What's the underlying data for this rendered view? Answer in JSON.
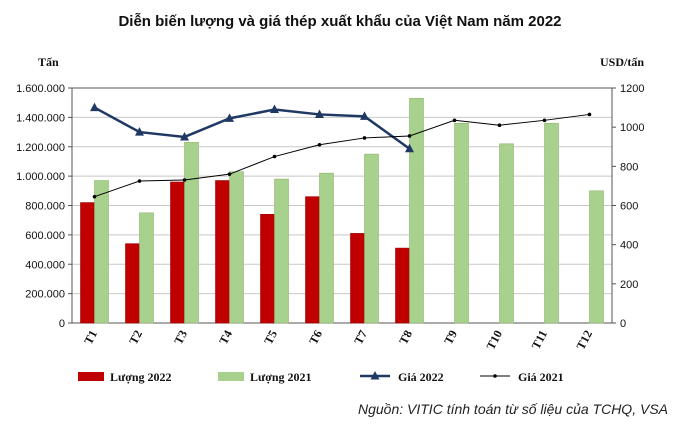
{
  "chart_data": {
    "type": "bar",
    "title": "Diễn biến lượng và giá thép xuất khẩu của Việt Nam năm 2022",
    "ylabel_left": "Tấn",
    "ylabel_right": "USD/tấn",
    "categories": [
      "T1",
      "T2",
      "T3",
      "T4",
      "T5",
      "T6",
      "T7",
      "T8",
      "T9",
      "T10",
      "T11",
      "T12"
    ],
    "ylim_left": [
      0,
      1600000
    ],
    "ylim_right": [
      0,
      1200
    ],
    "yticks_left": [
      "0",
      "200.000",
      "400.000",
      "600.000",
      "800.000",
      "1.000.000",
      "1.200.000",
      "1.400.000",
      "1.600.000"
    ],
    "yticks_right": [
      "0",
      "200",
      "400",
      "600",
      "800",
      "1000",
      "1200"
    ],
    "grid": true,
    "series": [
      {
        "name": "Lượng 2022",
        "type": "bar",
        "axis": "left",
        "color": "#c00000",
        "values": [
          820000,
          540000,
          960000,
          970000,
          740000,
          860000,
          610000,
          510000,
          null,
          null,
          null,
          null
        ]
      },
      {
        "name": "Lượng 2021",
        "type": "bar",
        "axis": "left",
        "color": "#a9d18e",
        "values": [
          970000,
          750000,
          1230000,
          1030000,
          980000,
          1020000,
          1150000,
          1530000,
          1360000,
          1220000,
          1360000,
          900000
        ]
      },
      {
        "name": "Giá 2022",
        "type": "line",
        "axis": "right",
        "color": "#1f3864",
        "marker": "triangle",
        "values": [
          1100,
          975,
          950,
          1045,
          1090,
          1065,
          1055,
          890,
          null,
          null,
          null,
          null
        ]
      },
      {
        "name": "Giá 2021",
        "type": "line",
        "axis": "right",
        "color": "#000000",
        "marker": "dot",
        "values": [
          645,
          725,
          730,
          760,
          850,
          910,
          945,
          955,
          1035,
          1010,
          1035,
          1065
        ]
      }
    ],
    "legend_position": "bottom",
    "source": "Nguồn: VITIC tính toán từ số liệu của TCHQ, VSA"
  }
}
